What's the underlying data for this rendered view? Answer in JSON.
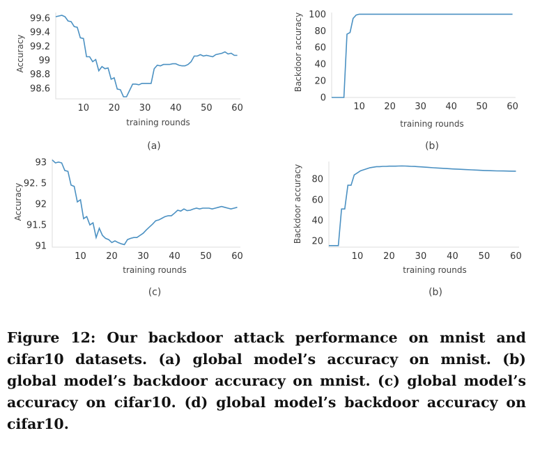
{
  "caption": "Figure 12: Our backdoor attack performance on mnist and cifar10 datasets. (a) global model’s accuracy on mnist. (b) global model’s backdoor accuracy on mnist. (c) global model’s accuracy on cifar10. (d) global model’s backdoor accuracy on cifar10.",
  "subcaptions": [
    "(a)",
    "(b)",
    "(c)",
    "(b)"
  ],
  "chart_data": [
    {
      "type": "line",
      "xlabel": "training rounds",
      "ylabel": "Accuracy",
      "xlim": [
        1,
        61
      ],
      "ylim": [
        98.45,
        99.68
      ],
      "xticks": [
        10,
        20,
        30,
        40,
        50,
        60
      ],
      "yticks": [
        98.6,
        98.8,
        99,
        99.2,
        99.4,
        99.6
      ],
      "ytick_labels": [
        "98.6",
        "98.8",
        "99",
        "99.2",
        "99.4",
        "99.6"
      ],
      "grid": false,
      "color": "#4a90c2",
      "x": [
        1,
        2,
        3,
        4,
        5,
        6,
        7,
        8,
        9,
        10,
        11,
        12,
        13,
        14,
        15,
        16,
        17,
        18,
        19,
        20,
        21,
        22,
        23,
        24,
        25,
        26,
        27,
        28,
        29,
        30,
        31,
        32,
        33,
        34,
        35,
        36,
        37,
        38,
        39,
        40,
        41,
        42,
        43,
        44,
        45,
        46,
        47,
        48,
        49,
        50,
        51,
        52,
        53,
        54,
        55,
        56,
        57,
        58,
        59,
        60
      ],
      "y": [
        99.62,
        99.63,
        99.64,
        99.62,
        99.56,
        99.55,
        99.48,
        99.47,
        99.32,
        99.31,
        99.05,
        99.05,
        98.98,
        99.01,
        98.85,
        98.91,
        98.88,
        98.89,
        98.73,
        98.75,
        98.59,
        98.58,
        98.48,
        98.48,
        98.57,
        98.66,
        98.66,
        98.65,
        98.67,
        98.67,
        98.67,
        98.67,
        98.88,
        98.93,
        98.92,
        98.94,
        98.94,
        98.94,
        98.95,
        98.95,
        98.93,
        98.92,
        98.92,
        98.94,
        98.98,
        99.06,
        99.06,
        99.08,
        99.06,
        99.07,
        99.06,
        99.05,
        99.08,
        99.09,
        99.1,
        99.12,
        99.09,
        99.1,
        99.07,
        99.07
      ]
    },
    {
      "type": "line",
      "xlabel": "training rounds",
      "ylabel": "Backdoor accuracy",
      "xlim": [
        1,
        61
      ],
      "ylim": [
        0,
        102
      ],
      "xticks": [
        10,
        20,
        30,
        40,
        50,
        60
      ],
      "yticks": [
        0,
        20,
        40,
        60,
        80,
        100
      ],
      "ytick_labels": [
        "0",
        "20",
        "40",
        "60",
        "80",
        "100"
      ],
      "grid": false,
      "color": "#4a90c2",
      "x": [
        1,
        2,
        3,
        4,
        5,
        6,
        7,
        8,
        9,
        10,
        15,
        20,
        30,
        40,
        50,
        60
      ],
      "y": [
        0,
        0,
        0,
        0,
        0,
        76,
        78,
        95,
        99,
        100,
        100,
        100,
        100,
        100,
        100,
        100
      ]
    },
    {
      "type": "line",
      "xlabel": "training rounds",
      "ylabel": "Accuracy",
      "xlim": [
        1,
        61
      ],
      "ylim": [
        90.97,
        93.08
      ],
      "xticks": [
        10,
        20,
        30,
        40,
        50,
        60
      ],
      "yticks": [
        91,
        91.5,
        92,
        92.5,
        93
      ],
      "ytick_labels": [
        "91",
        "91.5",
        "92",
        "92. 5",
        "93"
      ],
      "grid": false,
      "color": "#4a90c2",
      "x": [
        1,
        2,
        3,
        4,
        5,
        6,
        7,
        8,
        9,
        10,
        11,
        12,
        13,
        14,
        15,
        16,
        17,
        18,
        19,
        20,
        21,
        22,
        23,
        24,
        25,
        26,
        27,
        28,
        29,
        30,
        31,
        32,
        33,
        34,
        35,
        36,
        37,
        38,
        39,
        40,
        41,
        42,
        43,
        44,
        45,
        46,
        47,
        48,
        49,
        50,
        51,
        52,
        53,
        54,
        55,
        56,
        57,
        58,
        59,
        60
      ],
      "y": [
        93.05,
        92.98,
        93.0,
        92.98,
        92.8,
        92.78,
        92.45,
        92.42,
        92.05,
        92.1,
        91.65,
        91.7,
        91.5,
        91.55,
        91.2,
        91.42,
        91.25,
        91.18,
        91.15,
        91.08,
        91.12,
        91.08,
        91.05,
        91.03,
        91.15,
        91.18,
        91.2,
        91.2,
        91.25,
        91.3,
        91.38,
        91.45,
        91.52,
        91.6,
        91.62,
        91.66,
        91.7,
        91.72,
        91.72,
        91.78,
        91.85,
        91.83,
        91.88,
        91.84,
        91.85,
        91.88,
        91.9,
        91.88,
        91.9,
        91.9,
        91.9,
        91.88,
        91.9,
        91.92,
        91.94,
        91.92,
        91.9,
        91.88,
        91.9,
        91.92
      ]
    },
    {
      "type": "line",
      "xlabel": "training rounds",
      "ylabel": "Backdoor accuracy",
      "xlim": [
        1,
        61
      ],
      "ylim": [
        14,
        97
      ],
      "xticks": [
        10,
        20,
        30,
        40,
        50,
        60
      ],
      "yticks": [
        20,
        40,
        60,
        80
      ],
      "ytick_labels": [
        "20",
        "40",
        "60",
        "80"
      ],
      "grid": false,
      "color": "#4a90c2",
      "x": [
        1,
        2,
        3,
        4,
        5,
        6,
        7,
        8,
        9,
        10,
        11,
        12,
        13,
        14,
        15,
        16,
        17,
        18,
        19,
        20,
        21,
        22,
        23,
        24,
        25,
        26,
        27,
        28,
        29,
        30,
        32,
        34,
        36,
        38,
        40,
        42,
        44,
        46,
        48,
        50,
        52,
        54,
        56,
        58,
        60
      ],
      "y": [
        15.5,
        15.5,
        15.5,
        15.5,
        51,
        51,
        74,
        74,
        84,
        86,
        88,
        89,
        90,
        91,
        91.5,
        92,
        92,
        92.3,
        92.3,
        92.5,
        92.5,
        92.5,
        92.6,
        92.7,
        92.6,
        92.5,
        92.3,
        92.2,
        92.0,
        91.8,
        91.4,
        90.9,
        90.5,
        90.2,
        89.8,
        89.5,
        89.2,
        88.9,
        88.6,
        88.3,
        88.1,
        87.9,
        87.8,
        87.7,
        87.6
      ]
    }
  ]
}
